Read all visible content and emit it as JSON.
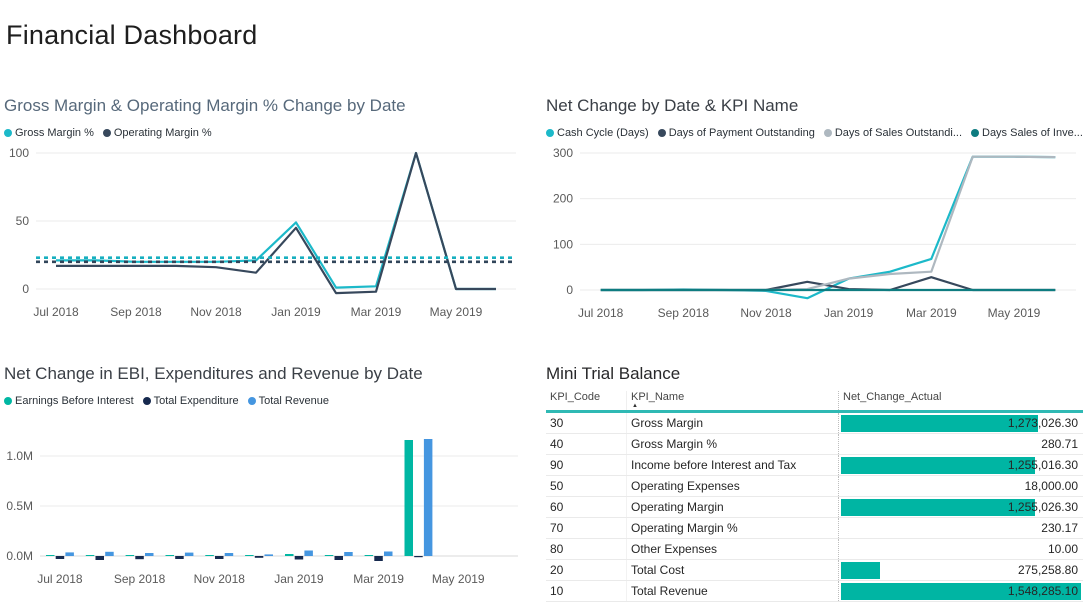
{
  "page": {
    "title": "Financial Dashboard"
  },
  "chart_data": [
    {
      "type": "line",
      "title": "Gross Margin & Operating Margin % Change by Date",
      "x": [
        "Jul 2018",
        "Aug 2018",
        "Sep 2018",
        "Oct 2018",
        "Nov 2018",
        "Dec 2018",
        "Jan 2019",
        "Feb 2019",
        "Mar 2019",
        "Apr 2019",
        "May 2019",
        "Jun 2019"
      ],
      "xticks": [
        {
          "i": 0,
          "label": "Jul 2018"
        },
        {
          "i": 2,
          "label": "Sep 2018"
        },
        {
          "i": 4,
          "label": "Nov 2018"
        },
        {
          "i": 6,
          "label": "Jan 2019"
        },
        {
          "i": 8,
          "label": "Mar 2019"
        },
        {
          "i": 10,
          "label": "May 2019"
        }
      ],
      "yticks": [
        0,
        50,
        100
      ],
      "ytick_labels": [
        "0",
        "50",
        "100"
      ],
      "legend_position": "top",
      "grid": true,
      "series": [
        {
          "name": "Gross Margin %",
          "color": "#1CB9C9",
          "values": [
            21,
            21,
            20,
            20,
            20,
            21,
            49,
            1,
            2,
            100,
            0,
            0
          ]
        },
        {
          "name": "Operating Margin %",
          "color": "#37485C",
          "values": [
            17,
            17,
            17,
            17,
            16,
            12,
            45,
            -3,
            -2,
            100,
            0,
            0
          ]
        }
      ],
      "trend_lines": [
        {
          "name": "Gross Margin % average",
          "color": "#17AFBF",
          "value": 23
        },
        {
          "name": "Operating Margin % average",
          "color": "#31455A",
          "value": 20
        }
      ]
    },
    {
      "type": "line",
      "title": "Net Change by Date & KPI Name",
      "x": [
        "Jul 2018",
        "Aug 2018",
        "Sep 2018",
        "Oct 2018",
        "Nov 2018",
        "Dec 2018",
        "Jan 2019",
        "Feb 2019",
        "Mar 2019",
        "Apr 2019",
        "May 2019",
        "Jun 2019"
      ],
      "xticks": [
        {
          "i": 0,
          "label": "Jul 2018"
        },
        {
          "i": 2,
          "label": "Sep 2018"
        },
        {
          "i": 4,
          "label": "Nov 2018"
        },
        {
          "i": 6,
          "label": "Jan 2019"
        },
        {
          "i": 8,
          "label": "Mar 2019"
        },
        {
          "i": 10,
          "label": "May 2019"
        }
      ],
      "yticks": [
        0,
        100,
        200,
        300
      ],
      "ytick_labels": [
        "0",
        "100",
        "200",
        "300"
      ],
      "legend_position": "top",
      "grid": true,
      "series": [
        {
          "name": "Cash Cycle (Days)",
          "color": "#1CB9C9",
          "values": [
            0,
            0,
            1,
            0,
            -2,
            -18,
            25,
            40,
            68,
            292,
            292,
            291
          ]
        },
        {
          "name": "Days of Payment Outstanding",
          "color": "#37485C",
          "values": [
            0,
            0,
            0,
            0,
            0,
            18,
            2,
            0,
            28,
            0,
            0,
            0
          ]
        },
        {
          "name": "Days of Sales Outstandi...",
          "color": "#AEB8C0",
          "values": [
            0,
            0,
            0,
            0,
            0,
            2,
            25,
            35,
            40,
            292,
            292,
            291
          ]
        },
        {
          "name": "Days Sales of Inve...",
          "color": "#0E7C80",
          "values": [
            0,
            0,
            0,
            0,
            0,
            0,
            0,
            0,
            0,
            0,
            0,
            0
          ]
        }
      ],
      "trend_lines": []
    },
    {
      "type": "bar",
      "title": "Net Change in EBI, Expenditures and Revenue by Date",
      "x": [
        "Jul 2018",
        "Aug 2018",
        "Sep 2018",
        "Oct 2018",
        "Nov 2018",
        "Dec 2018",
        "Jan 2019",
        "Feb 2019",
        "Mar 2019",
        "Apr 2019",
        "May 2019",
        "Jun 2019"
      ],
      "xticks": [
        {
          "i": 0,
          "label": "Jul 2018"
        },
        {
          "i": 2,
          "label": "Sep 2018"
        },
        {
          "i": 4,
          "label": "Nov 2018"
        },
        {
          "i": 6,
          "label": "Jan 2019"
        },
        {
          "i": 8,
          "label": "Mar 2019"
        },
        {
          "i": 10,
          "label": "May 2019"
        }
      ],
      "yticks": [
        0,
        0.5,
        1.0
      ],
      "ytick_labels": [
        "0.0M",
        "0.5M",
        "1.0M"
      ],
      "ylabel_unit": "M",
      "legend_position": "top",
      "grid": true,
      "series": [
        {
          "name": "Earnings Before Interest",
          "color": "#00B7A3",
          "values": [
            0.01,
            0.006,
            0.006,
            0.006,
            0.006,
            0.005,
            0.02,
            0.006,
            0.006,
            1.16,
            0,
            0
          ]
        },
        {
          "name": "Total Expenditure",
          "color": "#16294E",
          "values": [
            -0.03,
            -0.04,
            -0.032,
            -0.03,
            -0.03,
            -0.018,
            -0.035,
            -0.04,
            -0.05,
            -0.012,
            0,
            0
          ]
        },
        {
          "name": "Total Revenue",
          "color": "#4596E0",
          "values": [
            0.036,
            0.042,
            0.03,
            0.034,
            0.03,
            0.016,
            0.055,
            0.04,
            0.045,
            1.17,
            0,
            0
          ]
        }
      ]
    },
    {
      "type": "table",
      "title": "Mini Trial Balance",
      "columns": [
        "KPI_Code",
        "KPI_Name",
        "Net_Change_Actual"
      ],
      "sort": {
        "column": "KPI_Name",
        "direction": "ascending"
      },
      "bar_color": "#00B5A3",
      "max_value": 1548285.1,
      "rows": [
        {
          "code": "30",
          "name": "Gross Margin",
          "display": "1,273,026.30",
          "value": 1273026.3
        },
        {
          "code": "40",
          "name": "Gross Margin %",
          "display": "280.71",
          "value": 280.71
        },
        {
          "code": "90",
          "name": "Income before Interest and Tax",
          "display": "1,255,016.30",
          "value": 1255016.3
        },
        {
          "code": "50",
          "name": "Operating Expenses",
          "display": "18,000.00",
          "value": 18000.0
        },
        {
          "code": "60",
          "name": "Operating Margin",
          "display": "1,255,026.30",
          "value": 1255026.3
        },
        {
          "code": "70",
          "name": "Operating Margin %",
          "display": "230.17",
          "value": 230.17
        },
        {
          "code": "80",
          "name": "Other Expenses",
          "display": "10.00",
          "value": 10.0
        },
        {
          "code": "20",
          "name": "Total Cost",
          "display": "275,258.80",
          "value": 275258.8
        },
        {
          "code": "10",
          "name": "Total Revenue",
          "display": "1,548,285.10",
          "value": 1548285.1
        }
      ]
    }
  ]
}
